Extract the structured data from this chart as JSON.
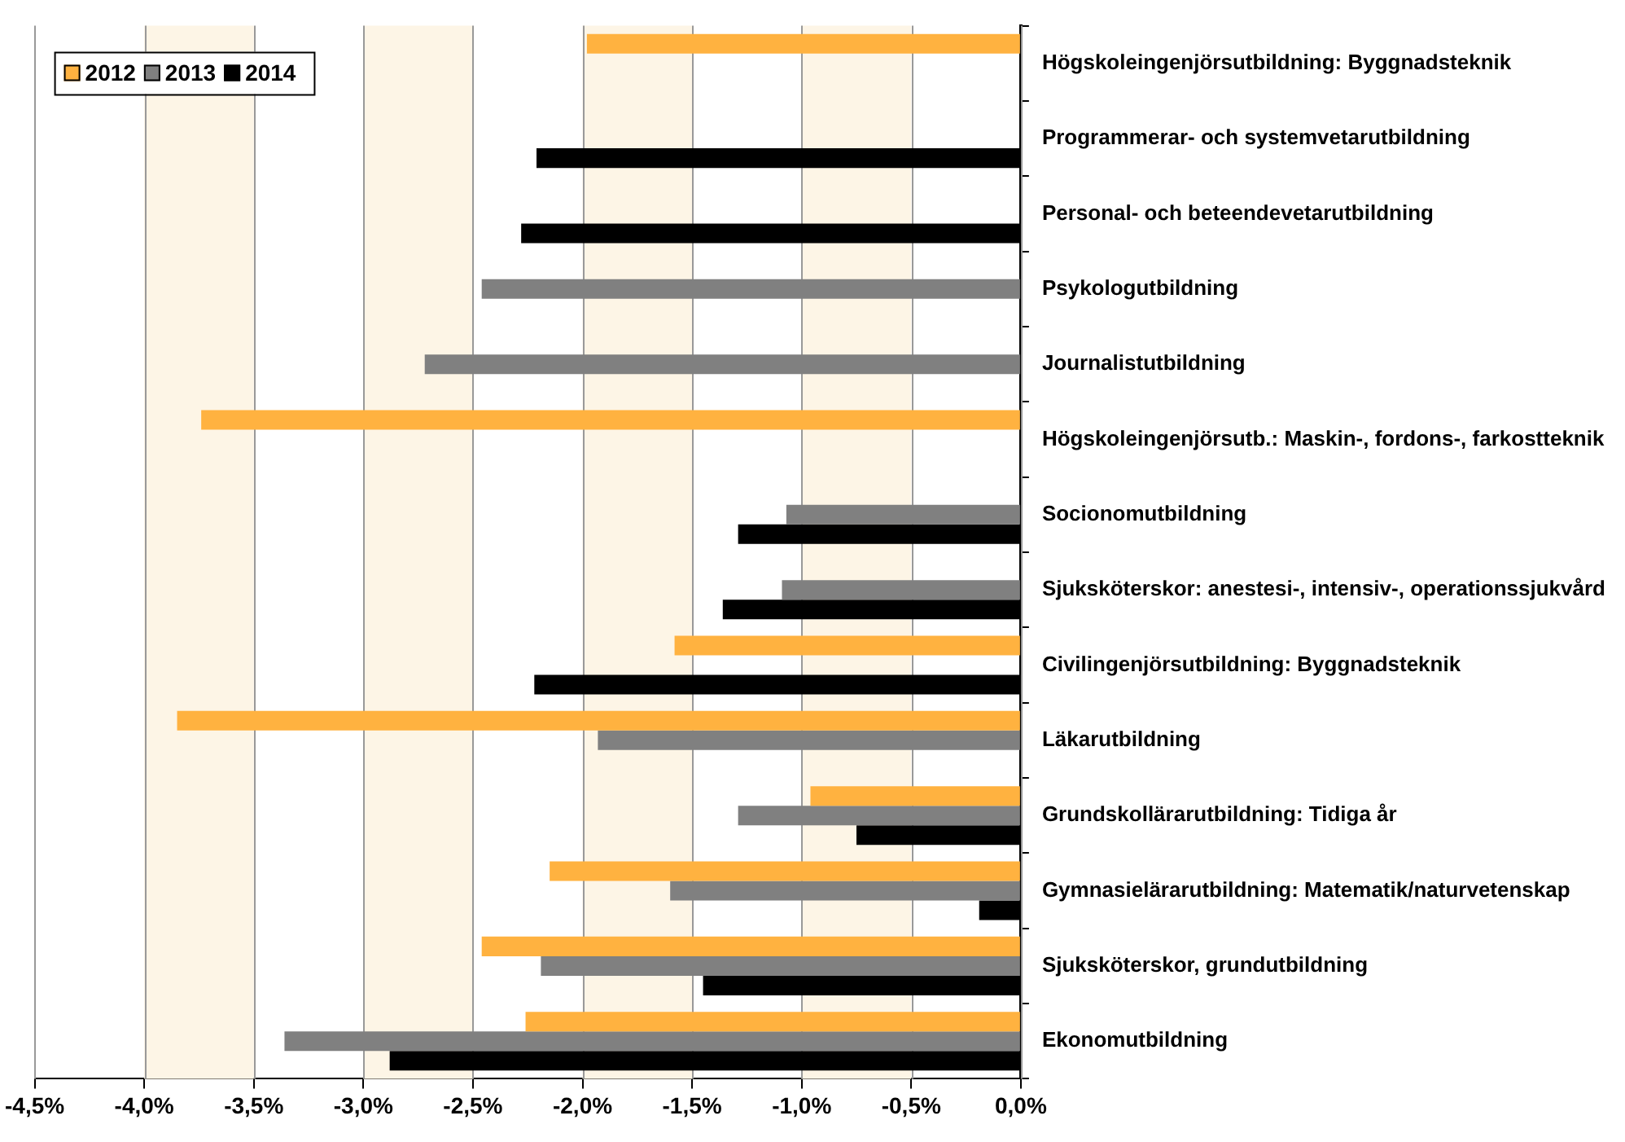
{
  "chart_data": {
    "type": "bar",
    "orientation": "horizontal",
    "categories": [
      "Högskoleingenjörsutbildning: Byggnadsteknik",
      "Programmerar- och systemvetarutbildning",
      "Personal- och beteendevetarutbildning",
      "Psykologutbildning",
      "Journalistutbildning",
      "Högskoleingenjörsutb.: Maskin-, fordons-, farkostteknik",
      "Socionomutbildning",
      "Sjuksköterskor: anestesi-, intensiv-, operationssjukvård",
      "Civilingenjörsutbildning: Byggnadsteknik",
      "Läkarutbildning",
      "Grundskollärarutbildning: Tidiga år",
      "Gymnasielärarutbildning: Matematik/naturvetenskap",
      "Sjuksköterskor, grundutbildning",
      "Ekonomutbildning"
    ],
    "series": [
      {
        "name": "2012",
        "color": "#ffb240",
        "values": [
          -1.98,
          null,
          null,
          null,
          null,
          -3.74,
          null,
          null,
          -1.58,
          -3.85,
          -0.96,
          -2.15,
          -2.46,
          -2.26
        ]
      },
      {
        "name": "2013",
        "color": "#808080",
        "values": [
          null,
          null,
          null,
          -2.46,
          -2.72,
          null,
          -1.07,
          -1.09,
          null,
          -1.93,
          -1.29,
          -1.6,
          -2.19,
          -3.36
        ]
      },
      {
        "name": "2014",
        "color": "#000000",
        "values": [
          null,
          -2.21,
          -2.28,
          null,
          null,
          null,
          -1.29,
          -1.36,
          -2.22,
          null,
          -0.75,
          -0.19,
          -1.45,
          -2.88
        ]
      }
    ],
    "xlim": [
      -4.5,
      0
    ],
    "xticks": [
      {
        "value": -4.5,
        "label": "-4,5%"
      },
      {
        "value": -4,
        "label": "-4,0%"
      },
      {
        "value": -3.5,
        "label": "-3,5%"
      },
      {
        "value": -3,
        "label": "-3,0%"
      },
      {
        "value": -2.5,
        "label": "-2,5%"
      },
      {
        "value": -2,
        "label": "-2,0%"
      },
      {
        "value": -1.5,
        "label": "-1,5%"
      },
      {
        "value": -1,
        "label": "-1,0%"
      },
      {
        "value": -0.5,
        "label": "-0,5%"
      },
      {
        "value": 0,
        "label": "0,0%"
      }
    ],
    "bands": [
      {
        "axis": "x",
        "from": -4,
        "to": -3.5,
        "color": "#fdf5e6"
      },
      {
        "axis": "x",
        "from": -3,
        "to": -2.5,
        "color": "#fdf5e6"
      },
      {
        "axis": "x",
        "from": -2,
        "to": -1.5,
        "color": "#fdf5e6"
      },
      {
        "axis": "x",
        "from": -1,
        "to": -0.5,
        "color": "#fdf5e6"
      }
    ],
    "grid": "x",
    "legend": "top left"
  }
}
